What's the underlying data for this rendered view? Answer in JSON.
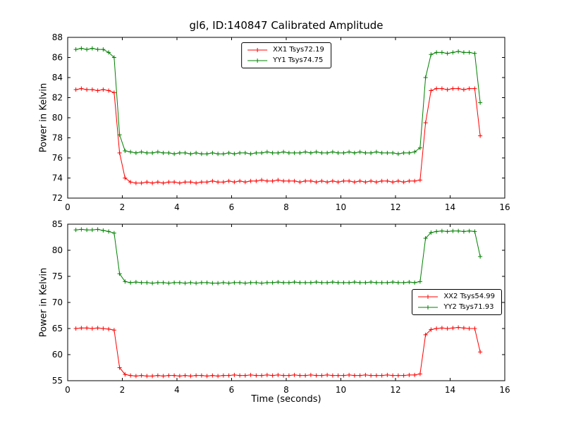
{
  "title": "gl6, ID:140847 Calibrated Amplitude",
  "colors": {
    "red": "#ff0000",
    "green": "#008000",
    "axis": "#000000",
    "background": "#ffffff"
  },
  "chart_data": [
    {
      "type": "line",
      "ylabel": "Power in Kelvin",
      "xlabel": "",
      "ylim": [
        72,
        88
      ],
      "xlim": [
        0,
        16
      ],
      "yticks": [
        72,
        74,
        76,
        78,
        80,
        82,
        84,
        86,
        88
      ],
      "xticks": [
        0,
        2,
        4,
        6,
        8,
        10,
        12,
        14,
        16
      ],
      "legend_position": "upper center",
      "grid": false,
      "marker": "plus",
      "x": [
        0.3,
        0.5,
        0.7,
        0.9,
        1.1,
        1.3,
        1.5,
        1.7,
        1.9,
        2.1,
        2.3,
        2.5,
        2.7,
        2.9,
        3.1,
        3.3,
        3.5,
        3.7,
        3.9,
        4.1,
        4.3,
        4.5,
        4.7,
        4.9,
        5.1,
        5.3,
        5.5,
        5.7,
        5.9,
        6.1,
        6.3,
        6.5,
        6.7,
        6.9,
        7.1,
        7.3,
        7.5,
        7.7,
        7.9,
        8.1,
        8.3,
        8.5,
        8.7,
        8.9,
        9.1,
        9.3,
        9.5,
        9.7,
        9.9,
        10.1,
        10.3,
        10.5,
        10.7,
        10.9,
        11.1,
        11.3,
        11.5,
        11.7,
        11.9,
        12.1,
        12.3,
        12.5,
        12.7,
        12.9,
        13.1,
        13.3,
        13.5,
        13.7,
        13.9,
        14.1,
        14.3,
        14.5,
        14.7,
        14.9,
        15.1
      ],
      "series": [
        {
          "name": "XX1 Tsys72.19",
          "color": "#ff0000",
          "values": [
            82.8,
            82.9,
            82.8,
            82.8,
            82.7,
            82.8,
            82.7,
            82.5,
            76.5,
            74.0,
            73.6,
            73.5,
            73.5,
            73.6,
            73.5,
            73.6,
            73.5,
            73.6,
            73.6,
            73.5,
            73.6,
            73.6,
            73.5,
            73.6,
            73.6,
            73.7,
            73.6,
            73.6,
            73.7,
            73.6,
            73.7,
            73.6,
            73.7,
            73.7,
            73.8,
            73.7,
            73.7,
            73.8,
            73.7,
            73.7,
            73.7,
            73.6,
            73.7,
            73.7,
            73.6,
            73.7,
            73.6,
            73.7,
            73.6,
            73.7,
            73.7,
            73.6,
            73.7,
            73.6,
            73.7,
            73.6,
            73.7,
            73.7,
            73.6,
            73.7,
            73.6,
            73.7,
            73.7,
            73.8,
            79.5,
            82.7,
            82.9,
            82.9,
            82.8,
            82.9,
            82.9,
            82.8,
            82.9,
            82.9,
            78.2
          ]
        },
        {
          "name": "YY1 Tsys74.75",
          "color": "#008000",
          "values": [
            86.8,
            86.9,
            86.8,
            86.9,
            86.8,
            86.8,
            86.5,
            86.0,
            78.3,
            76.7,
            76.6,
            76.5,
            76.6,
            76.5,
            76.5,
            76.6,
            76.5,
            76.5,
            76.4,
            76.5,
            76.5,
            76.4,
            76.5,
            76.4,
            76.4,
            76.5,
            76.4,
            76.4,
            76.5,
            76.4,
            76.5,
            76.5,
            76.4,
            76.5,
            76.5,
            76.6,
            76.5,
            76.5,
            76.6,
            76.5,
            76.5,
            76.5,
            76.6,
            76.5,
            76.6,
            76.5,
            76.5,
            76.6,
            76.5,
            76.5,
            76.6,
            76.5,
            76.6,
            76.5,
            76.5,
            76.6,
            76.5,
            76.5,
            76.5,
            76.4,
            76.5,
            76.5,
            76.6,
            77.0,
            84.0,
            86.3,
            86.5,
            86.5,
            86.4,
            86.5,
            86.6,
            86.5,
            86.5,
            86.4,
            81.5
          ]
        }
      ]
    },
    {
      "type": "line",
      "ylabel": "Power in Kelvin",
      "xlabel": "Time (seconds)",
      "ylim": [
        55,
        85
      ],
      "xlim": [
        0,
        16
      ],
      "yticks": [
        55,
        60,
        65,
        70,
        75,
        80,
        85
      ],
      "xticks": [
        0,
        2,
        4,
        6,
        8,
        10,
        12,
        14,
        16
      ],
      "legend_position": "center right",
      "grid": false,
      "marker": "plus",
      "x": [
        0.3,
        0.5,
        0.7,
        0.9,
        1.1,
        1.3,
        1.5,
        1.7,
        1.9,
        2.1,
        2.3,
        2.5,
        2.7,
        2.9,
        3.1,
        3.3,
        3.5,
        3.7,
        3.9,
        4.1,
        4.3,
        4.5,
        4.7,
        4.9,
        5.1,
        5.3,
        5.5,
        5.7,
        5.9,
        6.1,
        6.3,
        6.5,
        6.7,
        6.9,
        7.1,
        7.3,
        7.5,
        7.7,
        7.9,
        8.1,
        8.3,
        8.5,
        8.7,
        8.9,
        9.1,
        9.3,
        9.5,
        9.7,
        9.9,
        10.1,
        10.3,
        10.5,
        10.7,
        10.9,
        11.1,
        11.3,
        11.5,
        11.7,
        11.9,
        12.1,
        12.3,
        12.5,
        12.7,
        12.9,
        13.1,
        13.3,
        13.5,
        13.7,
        13.9,
        14.1,
        14.3,
        14.5,
        14.7,
        14.9,
        15.1
      ],
      "series": [
        {
          "name": "XX2 Tsys54.99",
          "color": "#ff0000",
          "values": [
            65.0,
            65.1,
            65.1,
            65.0,
            65.1,
            65.0,
            64.9,
            64.7,
            57.5,
            56.2,
            56.0,
            55.9,
            56.0,
            55.9,
            55.9,
            56.0,
            55.9,
            56.0,
            56.0,
            55.9,
            56.0,
            55.9,
            56.0,
            56.0,
            55.9,
            56.0,
            55.9,
            56.0,
            56.0,
            56.1,
            56.0,
            56.0,
            56.1,
            56.0,
            56.0,
            56.1,
            56.0,
            56.1,
            56.0,
            56.0,
            56.1,
            56.0,
            56.0,
            56.1,
            56.0,
            56.0,
            56.1,
            56.0,
            56.0,
            56.0,
            56.1,
            56.0,
            56.0,
            56.1,
            56.0,
            56.0,
            56.0,
            56.1,
            56.0,
            56.0,
            56.0,
            56.1,
            56.1,
            56.3,
            63.8,
            64.8,
            65.0,
            65.1,
            65.0,
            65.1,
            65.2,
            65.1,
            65.0,
            65.0,
            60.5
          ]
        },
        {
          "name": "YY2 Tsys71.93",
          "color": "#008000",
          "values": [
            83.9,
            84.0,
            83.9,
            83.9,
            84.0,
            83.8,
            83.6,
            83.3,
            75.5,
            74.0,
            73.8,
            73.9,
            73.8,
            73.8,
            73.7,
            73.8,
            73.8,
            73.7,
            73.8,
            73.8,
            73.7,
            73.8,
            73.7,
            73.8,
            73.8,
            73.7,
            73.7,
            73.8,
            73.7,
            73.8,
            73.8,
            73.7,
            73.8,
            73.8,
            73.7,
            73.8,
            73.8,
            73.9,
            73.8,
            73.8,
            73.9,
            73.8,
            73.8,
            73.8,
            73.9,
            73.8,
            73.8,
            73.9,
            73.8,
            73.8,
            73.8,
            73.9,
            73.8,
            73.8,
            73.9,
            73.8,
            73.8,
            73.8,
            73.9,
            73.8,
            73.8,
            73.9,
            73.8,
            74.0,
            82.3,
            83.4,
            83.6,
            83.7,
            83.6,
            83.7,
            83.7,
            83.6,
            83.7,
            83.6,
            78.8
          ]
        }
      ]
    }
  ]
}
